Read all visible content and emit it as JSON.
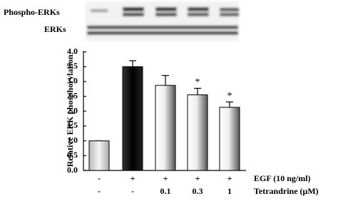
{
  "blot": {
    "labels": [
      "Phospho-ERKs",
      "ERKs"
    ]
  },
  "chart_data": {
    "type": "bar",
    "y_label": "Relative ERK phosphorylation",
    "ylim": [
      0,
      4
    ],
    "yticks": [
      {
        "value": 0,
        "label": "0.0"
      },
      0.5,
      {
        "value": 1,
        "label": "1.0"
      },
      1.5,
      {
        "value": 2,
        "label": "2.0"
      },
      2.5,
      {
        "value": 3,
        "label": "3.0"
      },
      3.5,
      {
        "value": 4,
        "label": "4.0"
      }
    ],
    "values": [
      1.0,
      3.5,
      2.87,
      2.55,
      2.13
    ],
    "errors": [
      0,
      0.2,
      0.33,
      0.22,
      0.18
    ],
    "annotations": [
      null,
      null,
      null,
      "*",
      "*"
    ],
    "colors": [
      "light",
      "black",
      "white",
      "white",
      "white"
    ],
    "conditions": [
      {
        "name": "EGF (10 ng/ml)",
        "labels": [
          "-",
          "+",
          "+",
          "+",
          "+"
        ]
      },
      {
        "name": "Tetrandrine (μM)",
        "labels": [
          "-",
          "-",
          "0.1",
          "0.3",
          "1"
        ]
      }
    ]
  }
}
